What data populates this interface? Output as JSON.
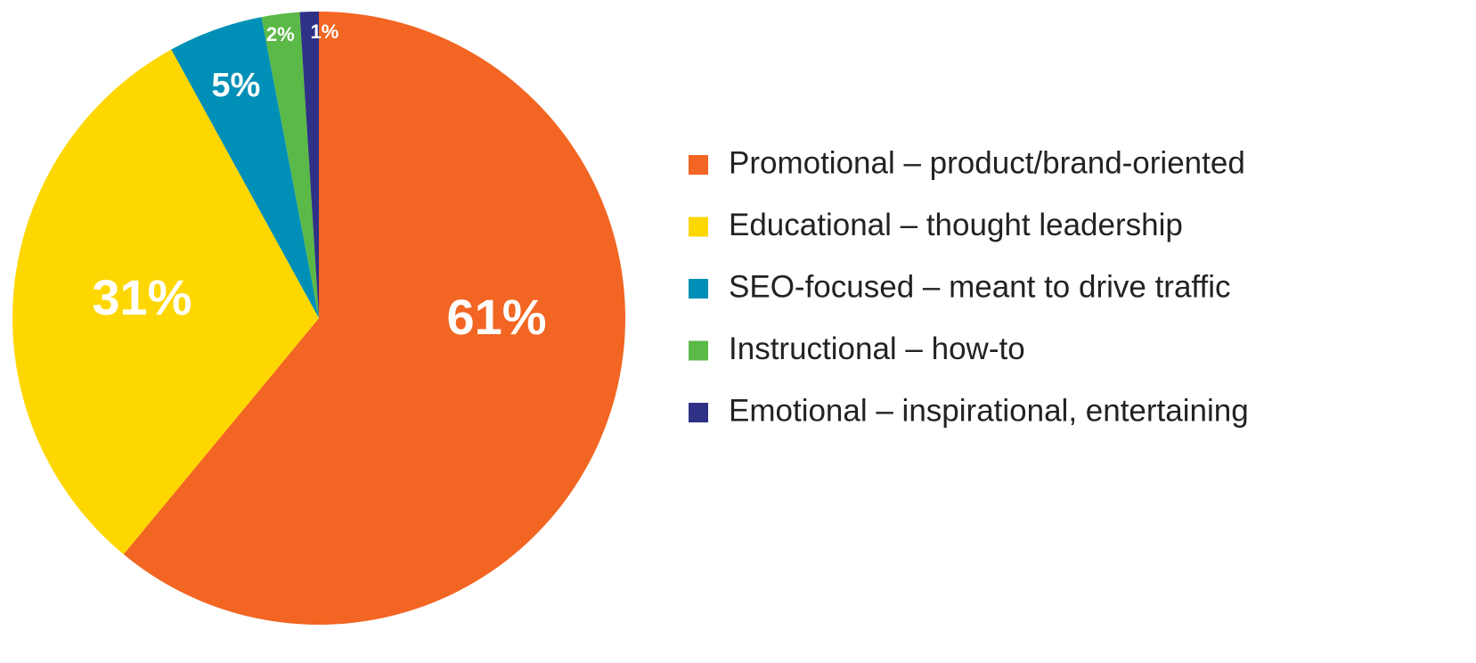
{
  "chart_data": {
    "type": "pie",
    "categories": [
      "Promotional – product/brand-oriented",
      "Educational – thought leadership",
      "SEO-focused – meant to drive traffic",
      "Instructional – how-to",
      "Emotional – inspirational, entertaining"
    ],
    "values": [
      61,
      31,
      5,
      2,
      1
    ],
    "value_labels": [
      "61%",
      "31%",
      "5%",
      "2%",
      "1%"
    ],
    "colors": [
      "#f26522",
      "#fed700",
      "#008fb6",
      "#5bb947",
      "#2e3185"
    ]
  }
}
